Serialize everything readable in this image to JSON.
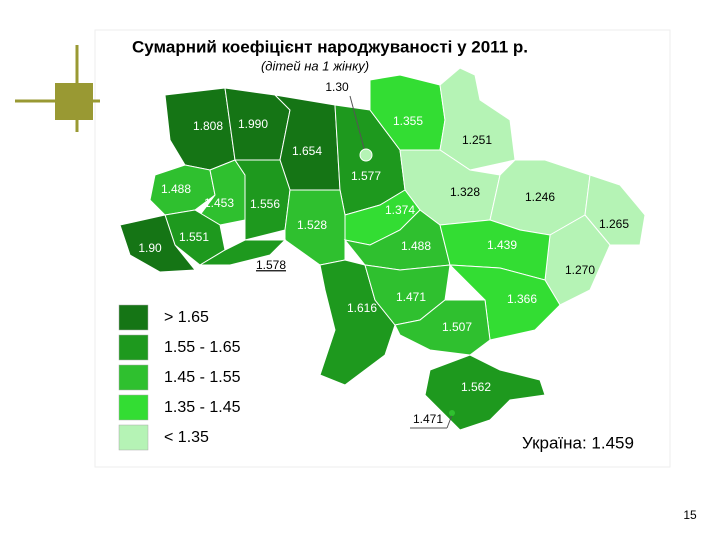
{
  "slide": {
    "title": "Сумарний коефіцієнт народжуваності  у 2011 р.",
    "subtitle": "(дітей на 1 жінку)",
    "legend": [
      {
        "label": "> 1.65",
        "color": "#157515"
      },
      {
        "label": "1.55 - 1.65",
        "color": "#1e991e"
      },
      {
        "label": "1.45 - 1.55",
        "color": "#2fc02f"
      },
      {
        "label": "1.35 - 1.45",
        "color": "#33dd33"
      },
      {
        "label": "< 1.35",
        "color": "#b5f3b5"
      }
    ],
    "regions": [
      {
        "label": "1.808",
        "color": "#157515"
      },
      {
        "label": "1.990",
        "color": "#157515"
      },
      {
        "label": "1.654",
        "color": "#157515"
      },
      {
        "label": "1.577",
        "color": "#1e991e"
      },
      {
        "label": "1.355",
        "color": "#33dd33"
      },
      {
        "label": "1.251",
        "color": "#b5f3b5"
      },
      {
        "label": "1.328",
        "color": "#b5f3b5"
      },
      {
        "label": "1.246",
        "color": "#b5f3b5"
      },
      {
        "label": "1.265",
        "color": "#b5f3b5"
      },
      {
        "label": "1.270",
        "color": "#b5f3b5"
      },
      {
        "label": "1.488",
        "color": "#2fc02f"
      },
      {
        "label": "1.453",
        "color": "#2fc02f"
      },
      {
        "label": "1.556",
        "color": "#1e991e"
      },
      {
        "label": "1.528",
        "color": "#2fc02f"
      },
      {
        "label": "1.551",
        "color": "#1e991e"
      },
      {
        "label": "1.90",
        "color": "#157515"
      },
      {
        "label": "1.578",
        "color": "#1e991e"
      },
      {
        "label": "1.374",
        "color": "#33dd33"
      },
      {
        "label": "1.488",
        "color": "#2fc02f"
      },
      {
        "label": "1.439",
        "color": "#33dd33"
      },
      {
        "label": "1.616",
        "color": "#1e991e"
      },
      {
        "label": "1.471",
        "color": "#2fc02f"
      },
      {
        "label": "1.366",
        "color": "#33dd33"
      },
      {
        "label": "1.507",
        "color": "#2fc02f"
      },
      {
        "label": "1.562",
        "color": "#1e991e"
      },
      {
        "label": "1.30",
        "color": "#b5f3b5"
      },
      {
        "label": "1.471",
        "color": "#2fc02f"
      }
    ],
    "total": "Україна: 1.459",
    "page_number": "15"
  }
}
